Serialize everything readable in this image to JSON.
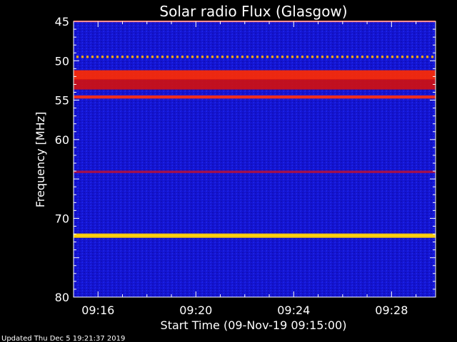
{
  "chart_data": {
    "type": "heatmap",
    "title": "Solar radio Flux (Glasgow)",
    "xlabel": "Start Time (09-Nov-19 09:15:00)",
    "ylabel": "Frequency [MHz]",
    "x_ticks": [
      "09:16",
      "09:20",
      "09:24",
      "09:28"
    ],
    "x_tick_minutes": [
      1,
      5,
      9,
      13
    ],
    "x_range_minutes": [
      0,
      14.8
    ],
    "y_ticks": [
      45,
      50,
      55,
      60,
      65,
      70,
      75,
      80
    ],
    "y_tick_labels": [
      "45",
      "50",
      "55",
      "60",
      "",
      "70",
      "",
      "80"
    ],
    "ylim": [
      45,
      80
    ],
    "y_inverted": true,
    "bands": [
      {
        "mhz": 45.0,
        "width": 0.2,
        "color": "#ff2020"
      },
      {
        "mhz": 49.5,
        "width": 0.3,
        "color": "#ffaa00",
        "dashed": true
      },
      {
        "mhz": 51.8,
        "width": 1.2,
        "color": "#ff2a00"
      },
      {
        "mhz": 53.0,
        "width": 1.3,
        "color": "#d01010"
      },
      {
        "mhz": 54.6,
        "width": 0.4,
        "color": "#ff3010"
      },
      {
        "mhz": 64.1,
        "width": 0.3,
        "color": "#b01040"
      },
      {
        "mhz": 72.2,
        "width": 0.25,
        "color": "#ffffc0"
      },
      {
        "mhz": 72.2,
        "width": 0.55,
        "color": "#ffd000"
      }
    ],
    "colors": {
      "background": "#1010d8",
      "frame": "#ffffff"
    }
  },
  "footer": "Updated Thu Dec  5 19:21:37 2019"
}
